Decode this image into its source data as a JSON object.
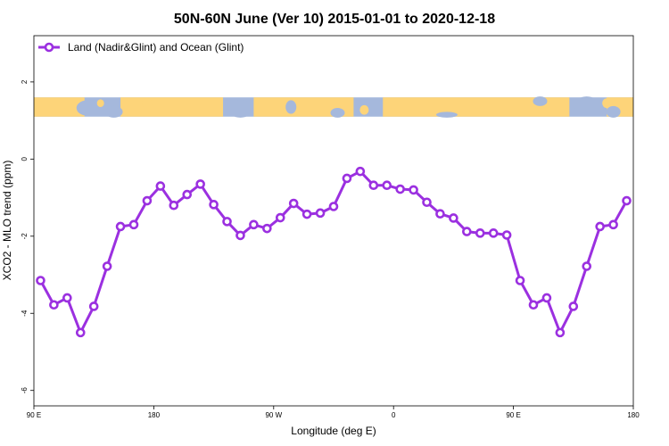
{
  "chart_data": {
    "type": "line",
    "title": "50N-60N June (Ver 10)   2015-01-01 to 2020-12-18",
    "xlabel": "Longitude (deg E)",
    "ylabel": "XCO2 - MLO trend (ppm)",
    "xlim": [
      90,
      540
    ],
    "ylim": [
      -6.4,
      3.2
    ],
    "x_ticks": [
      {
        "value": 90,
        "label": "90 E"
      },
      {
        "value": 180,
        "label": "180"
      },
      {
        "value": 270,
        "label": "90 W"
      },
      {
        "value": 360,
        "label": "0"
      },
      {
        "value": 450,
        "label": "90 E"
      },
      {
        "value": 540,
        "label": "180"
      }
    ],
    "y_ticks": [
      {
        "value": 2,
        "label": "2"
      },
      {
        "value": 0,
        "label": "0"
      },
      {
        "value": -2,
        "label": "-2"
      },
      {
        "value": -4,
        "label": "-4"
      },
      {
        "value": -6,
        "label": "-6"
      }
    ],
    "map_strip": {
      "y_top": 1.6,
      "y_bottom": 1.1,
      "ocean_color": "#a5b8dc",
      "land_color": "#fdd479"
    },
    "legend": {
      "position": "top-left",
      "label": "Land (Nadir&Glint) and Ocean (Glint)"
    },
    "series": [
      {
        "name": "Land (Nadir&Glint) and Ocean (Glint)",
        "color": "#9b30e0",
        "x": [
          95,
          105,
          115,
          125,
          135,
          145,
          155,
          165,
          175,
          185,
          195,
          205,
          215,
          225,
          235,
          245,
          255,
          265,
          275,
          285,
          295,
          305,
          315,
          325,
          335,
          345,
          355,
          365,
          375,
          385,
          395,
          405,
          415,
          425,
          435,
          445,
          455,
          465,
          475,
          485,
          495,
          505,
          515,
          525,
          535
        ],
        "y": [
          -3.15,
          -3.78,
          -3.6,
          -4.5,
          -3.82,
          -2.78,
          -1.75,
          -1.7,
          -1.08,
          -0.7,
          -1.2,
          -0.92,
          -0.65,
          -1.18,
          -1.62,
          -1.98,
          -1.7,
          -1.8,
          -1.52,
          -1.15,
          -1.43,
          -1.4,
          -1.23,
          -0.5,
          -0.32,
          -0.68,
          -0.68,
          -0.78,
          -0.8,
          -1.12,
          -1.42,
          -1.53,
          -1.88,
          -1.92,
          -1.92,
          -1.97,
          -3.15,
          -3.78,
          -3.6,
          -4.5,
          -3.82,
          -2.78,
          -1.75,
          -1.7,
          -1.08
        ]
      }
    ]
  }
}
